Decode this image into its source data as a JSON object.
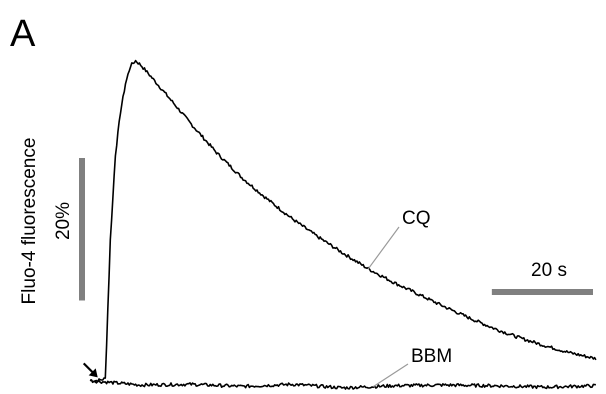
{
  "panel_label": "A",
  "colors": {
    "trace": "#000000",
    "scale_bar": "#808080",
    "leader_line": "#9a9a9a"
  },
  "chart_data": {
    "type": "line",
    "title": "",
    "xlabel": "",
    "ylabel": "Fluo-4 fluorescence",
    "grid": false,
    "legend": "none",
    "x_unit": "s",
    "y_unit": "%",
    "xlim": [
      -2,
      102
    ],
    "ylim": [
      -1,
      46
    ],
    "scale_bars": {
      "y": {
        "label": "20%",
        "value": 20
      },
      "x": {
        "label": "20 s",
        "value": 20
      }
    },
    "stimulus_marker": {
      "label": "arrow",
      "x": 1.5
    },
    "series": [
      {
        "name": "CQ",
        "x": [
          0,
          1,
          2,
          3,
          4,
          5,
          6,
          7,
          8,
          9,
          10,
          12,
          15,
          20,
          25,
          30,
          35,
          40,
          45,
          50,
          55,
          60,
          65,
          70,
          75,
          80,
          85,
          90,
          95,
          100
        ],
        "y": [
          0.4,
          0.3,
          0.4,
          0.6,
          20,
          32,
          38,
          42,
          44.5,
          45.2,
          44.6,
          43,
          40.5,
          36.3,
          32.3,
          28.8,
          25.8,
          23,
          20.5,
          18.2,
          16,
          14.1,
          12.4,
          10.7,
          9.1,
          7.6,
          6.3,
          5.2,
          4.2,
          3.4
        ]
      },
      {
        "name": "BBM",
        "x": [
          0,
          10,
          20,
          30,
          40,
          50,
          60,
          70,
          80,
          90,
          100
        ],
        "y": [
          0.3,
          -0.3,
          -0.2,
          -0.5,
          -0.2,
          -0.7,
          -0.4,
          -0.3,
          -0.4,
          -0.6,
          -0.4
        ]
      }
    ]
  }
}
